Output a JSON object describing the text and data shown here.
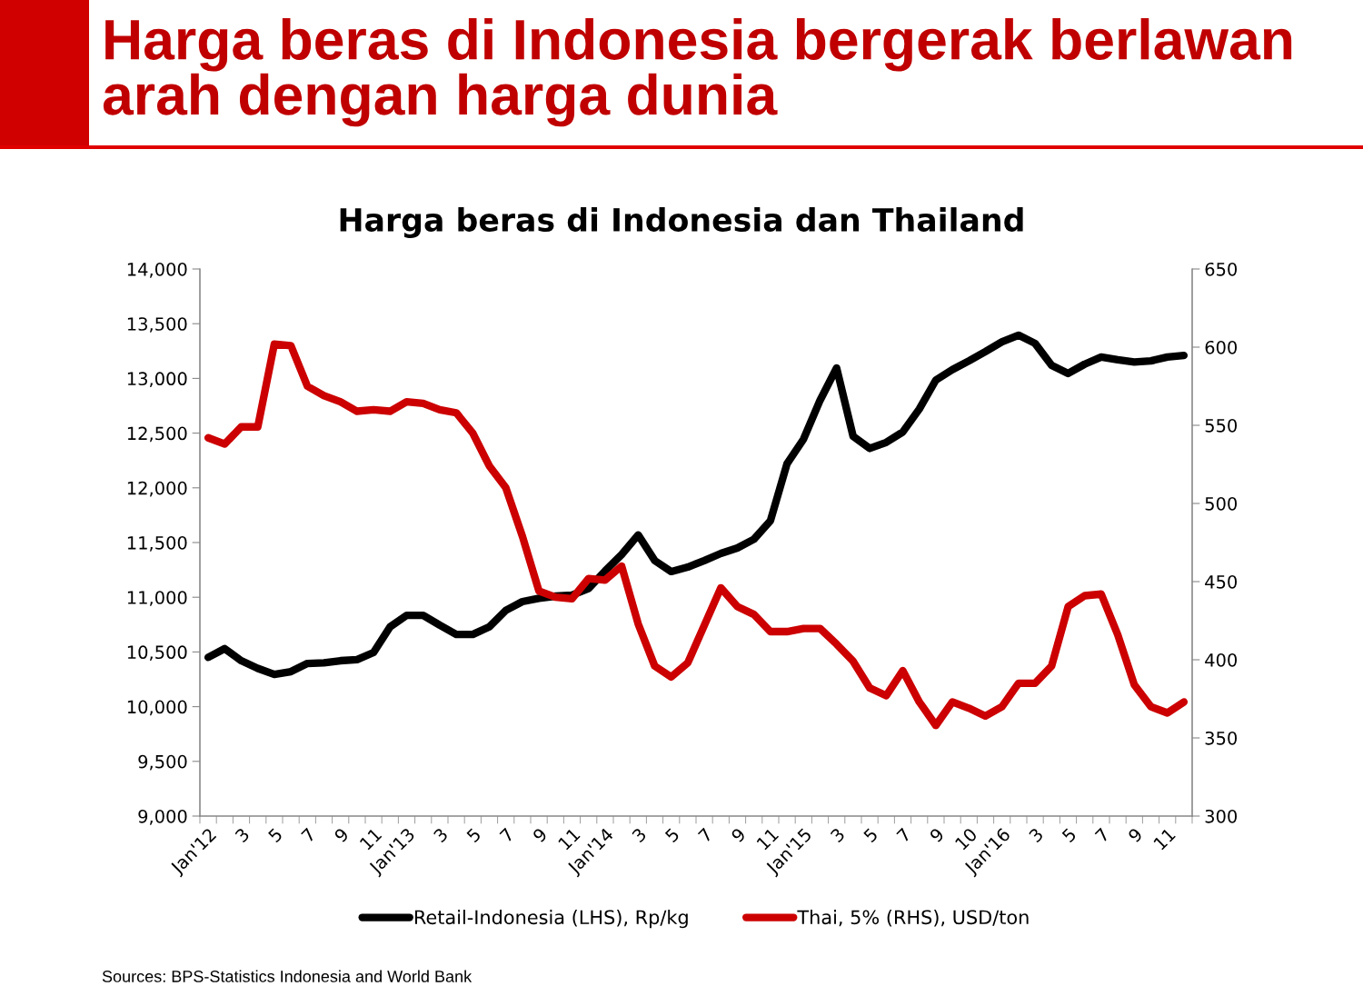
{
  "chart_data": {
    "type": "line",
    "title": "Harga beras di Indonesia bergerak berlawan arah dengan harga dunia",
    "subtitle": "Harga beras di Indonesia dan Thailand",
    "annotations": [
      "Sources: BPS-Statistics Indonesia and World Bank"
    ],
    "categories": [
      "Jan'12",
      null,
      "3",
      null,
      "5",
      null,
      "7",
      null,
      "9",
      null,
      "11",
      null,
      "Jan'13",
      null,
      "3",
      null,
      "5",
      null,
      "7",
      null,
      "9",
      null,
      "11",
      null,
      "Jan'14",
      null,
      "3",
      null,
      "5",
      null,
      "7",
      null,
      "9",
      null,
      "11",
      null,
      "Jan'15",
      null,
      "3",
      null,
      "5",
      null,
      "7",
      null,
      "9",
      null,
      "10",
      null,
      "Jan'16",
      null,
      "3",
      null,
      "5",
      null,
      "7",
      null,
      "9",
      null,
      "11",
      null
    ],
    "series": [
      {
        "name": "Retail-Indonesia (LHS), Rp/kg",
        "color": "#000000",
        "values": [
          10450,
          10530,
          10420,
          10350,
          10295,
          10320,
          10395,
          10400,
          10420,
          10430,
          10495,
          10730,
          10835,
          10835,
          10745,
          10660,
          10660,
          10730,
          10880,
          10960,
          10990,
          11010,
          11020,
          11080,
          11240,
          11390,
          11570,
          11335,
          11235,
          11275,
          11335,
          11400,
          11450,
          11530,
          11700,
          12220,
          12445,
          12800,
          13095,
          12470,
          12360,
          12415,
          12510,
          12720,
          12985,
          13080,
          13160,
          13245,
          13335,
          13395,
          13320,
          13120,
          13045,
          13130,
          13195,
          13170,
          13150,
          13160,
          13195,
          13210
        ]
      },
      {
        "name": "Thai, 5% (RHS), USD/ton",
        "color": "#cc0000",
        "axis": "y2",
        "values": [
          542,
          538,
          549,
          549,
          602,
          601,
          575,
          569,
          565,
          559,
          560,
          559,
          565,
          564,
          560,
          558,
          545,
          524,
          510,
          479,
          444,
          440,
          439,
          452,
          451,
          460,
          423,
          396,
          389,
          398,
          422,
          446,
          434,
          429,
          418,
          418,
          420,
          420,
          410,
          399,
          382,
          377,
          393,
          373,
          358,
          373,
          369,
          364,
          370,
          385,
          385,
          396,
          434,
          441,
          442,
          416,
          384,
          370,
          366,
          373
        ]
      }
    ],
    "ylim": [
      9000,
      14000
    ],
    "yticks": [
      {
        "value": 9000,
        "label": "9,000"
      },
      {
        "value": 9500,
        "label": "9,500"
      },
      {
        "value": 10000,
        "label": "10,000"
      },
      {
        "value": 10500,
        "label": "10,500"
      },
      {
        "value": 11000,
        "label": "11,000"
      },
      {
        "value": 11500,
        "label": "11,500"
      },
      {
        "value": 12000,
        "label": "12,000"
      },
      {
        "value": 12500,
        "label": "12,500"
      },
      {
        "value": 13000,
        "label": "13,000"
      },
      {
        "value": 13500,
        "label": "13,500"
      },
      {
        "value": 14000,
        "label": "14,000"
      }
    ],
    "y2lim": [
      300,
      650
    ],
    "y2ticks": [
      300,
      350,
      400,
      450,
      500,
      550,
      600,
      650
    ],
    "grid": false,
    "legend": "bottom",
    "marker": "none",
    "line_style": "solid"
  }
}
